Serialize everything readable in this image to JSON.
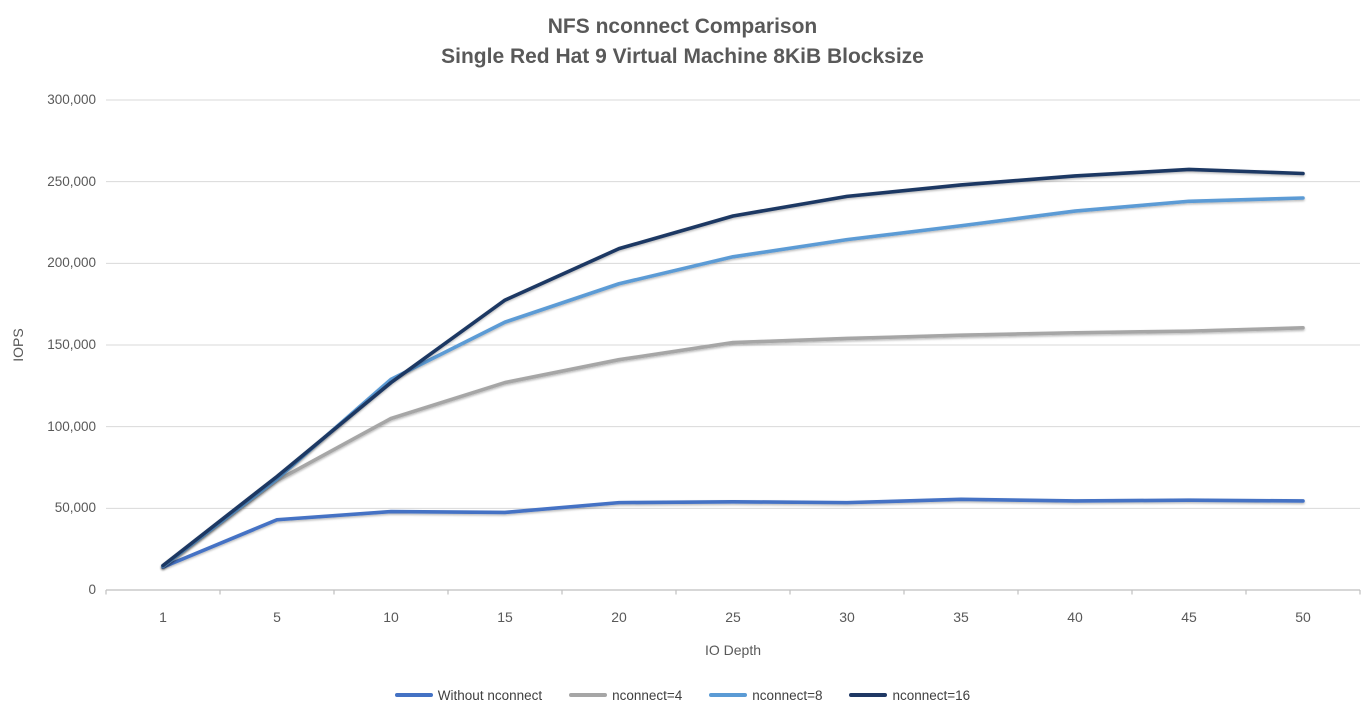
{
  "title": {
    "line1": "NFS nconnect Comparison",
    "line2": "Single Red Hat 9 Virtual Machine 8KiB Blocksize"
  },
  "chart_data": {
    "type": "line",
    "title": "NFS nconnect Comparison Single Red Hat 9 Virtual Machine 8KiB Blocksize",
    "xlabel": "IO Depth",
    "ylabel": "IOPS",
    "categories": [
      1,
      5,
      10,
      15,
      20,
      25,
      30,
      35,
      40,
      45,
      50
    ],
    "x_tick_labels": [
      "1",
      "5",
      "10",
      "15",
      "20",
      "25",
      "30",
      "35",
      "40",
      "45",
      "50"
    ],
    "ylim": [
      0,
      300000
    ],
    "y_tick_step": 50000,
    "y_tick_labels": [
      "0",
      "50,000",
      "100,000",
      "150,000",
      "200,000",
      "250,000",
      "300,000"
    ],
    "grid": true,
    "legend_position": "bottom",
    "series": [
      {
        "name": "Without nconnect",
        "color": "#4472C4",
        "values": [
          14000,
          43000,
          48000,
          47500,
          53500,
          54000,
          53500,
          55500,
          54500,
          55000,
          54500
        ]
      },
      {
        "name": "nconnect=4",
        "color": "#A6A6A6",
        "values": [
          14500,
          67000,
          105000,
          127000,
          141000,
          151500,
          154000,
          156000,
          157500,
          158500,
          160500
        ]
      },
      {
        "name": "nconnect=8",
        "color": "#5B9BD5",
        "values": [
          14500,
          68000,
          129000,
          164000,
          187500,
          204000,
          214500,
          223000,
          232000,
          238000,
          240000
        ]
      },
      {
        "name": "nconnect=16",
        "color": "#1F3864",
        "values": [
          15000,
          69500,
          127000,
          177500,
          209000,
          229000,
          241000,
          248000,
          253500,
          257500,
          255000
        ]
      }
    ],
    "axis_color": "#BFBFBF",
    "gridline_color": "#D9D9D9"
  }
}
